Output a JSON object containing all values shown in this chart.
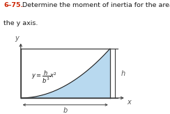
{
  "title_bold": "6–75.",
  "title_text": "  Determine the moment of inertia for the area about\nthe y axis.",
  "curve_color": "#b8d9ef",
  "curve_edge_color": "#1a1a1a",
  "rect_color": "#3a3a3a",
  "dim_color": "#555555",
  "label_h": "h",
  "label_b": "b",
  "label_x": "x",
  "label_y": "y",
  "background": "#ffffff",
  "title_color_num": "#cc2200",
  "title_color_text": "#1a1a1a",
  "eq_text": "$y = \\dfrac{h}{b^3}x^2$",
  "figsize": [
    2.44,
    1.64
  ],
  "dpi": 100
}
